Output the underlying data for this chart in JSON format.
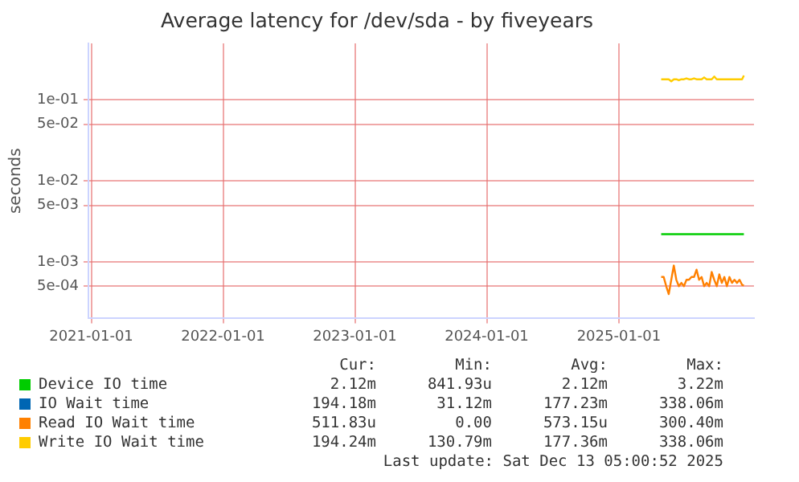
{
  "chart_data": {
    "type": "line",
    "title": "Average latency for /dev/sda - by fiveyears",
    "ylabel": "seconds",
    "x": [
      "2025-04-28",
      "2025-05-05",
      "2025-05-12",
      "2025-05-19",
      "2025-05-26",
      "2025-06-02",
      "2025-06-09",
      "2025-06-16",
      "2025-06-23",
      "2025-06-30",
      "2025-07-07",
      "2025-07-14",
      "2025-07-21",
      "2025-07-28",
      "2025-08-04",
      "2025-08-11",
      "2025-08-18",
      "2025-08-25",
      "2025-09-01",
      "2025-09-08",
      "2025-09-15",
      "2025-09-22",
      "2025-09-29",
      "2025-10-06",
      "2025-10-13",
      "2025-10-20",
      "2025-10-27",
      "2025-11-03",
      "2025-11-10",
      "2025-11-17",
      "2025-11-24",
      "2025-12-01",
      "2025-12-08",
      "2025-12-13"
    ],
    "series": [
      {
        "name": "Device IO time",
        "color": "#00cc00",
        "values": [
          0.0022,
          0.0022,
          0.0022,
          0.0022,
          0.0022,
          0.0022,
          0.0022,
          0.0022,
          0.0022,
          0.0022,
          0.0022,
          0.0022,
          0.0022,
          0.0022,
          0.0022,
          0.0022,
          0.0022,
          0.0022,
          0.0022,
          0.0022,
          0.0022,
          0.0022,
          0.0022,
          0.0022,
          0.0022,
          0.0022,
          0.0022,
          0.0022,
          0.0022,
          0.0022,
          0.0022,
          0.0022,
          0.0022,
          0.0022
        ]
      },
      {
        "name": "IO Wait time",
        "color": "#0066b3",
        "values": [
          null,
          null,
          null,
          null,
          null,
          null,
          null,
          null,
          null,
          null,
          null,
          null,
          null,
          null,
          null,
          null,
          null,
          null,
          null,
          null,
          null,
          null,
          null,
          null,
          null,
          null,
          null,
          null,
          null,
          null,
          null,
          null,
          null,
          null
        ]
      },
      {
        "name": "Read IO Wait time",
        "color": "#ff8000",
        "values": [
          0.00065,
          0.00065,
          0.0005,
          0.0004,
          0.0006,
          0.0009,
          0.0006,
          0.0005,
          0.00055,
          0.0005,
          0.0006,
          0.0006,
          0.00065,
          0.00065,
          0.0008,
          0.0006,
          0.00065,
          0.0005,
          0.00055,
          0.0005,
          0.00075,
          0.0006,
          0.0005,
          0.0007,
          0.00055,
          0.00065,
          0.0005,
          0.00065,
          0.00055,
          0.0006,
          0.00055,
          0.0006,
          0.00052,
          0.00051
        ]
      },
      {
        "name": "Write IO Wait time",
        "color": "#ffcc00",
        "values": [
          0.18,
          0.18,
          0.18,
          0.18,
          0.17,
          0.18,
          0.18,
          0.175,
          0.18,
          0.18,
          0.185,
          0.18,
          0.18,
          0.185,
          0.18,
          0.18,
          0.18,
          0.19,
          0.18,
          0.18,
          0.18,
          0.195,
          0.18,
          0.18,
          0.18,
          0.18,
          0.18,
          0.18,
          0.18,
          0.18,
          0.18,
          0.18,
          0.18,
          0.2
        ]
      }
    ],
    "log": "y",
    "ylim": [
      0.0002,
      0.5
    ],
    "yticks": [
      {
        "value": 0.0005,
        "label": "5e-04"
      },
      {
        "value": 0.001,
        "label": "1e-03"
      },
      {
        "value": 0.005,
        "label": "5e-03"
      },
      {
        "value": 0.01,
        "label": "1e-02"
      },
      {
        "value": 0.05,
        "label": "5e-02"
      },
      {
        "value": 0.1,
        "label": "1e-01"
      }
    ],
    "xlim": [
      "2020-12-24",
      "2026-01-10"
    ],
    "xticks": [
      "2021-01-01",
      "2022-01-01",
      "2023-01-01",
      "2024-01-01",
      "2025-01-01"
    ],
    "grid": true,
    "legend": "bottom",
    "marker": "none",
    "line_style": "solid",
    "annotations": [
      "Cur:",
      "Min:",
      "Avg:",
      "Max:",
      "2.12m",
      "841.93u",
      "2.12m",
      "3.22m",
      "194.18m",
      "31.12m",
      "177.23m",
      "338.06m",
      "511.83u",
      "0.00",
      "573.15u",
      "300.40m",
      "194.24m",
      "130.79m",
      "177.36m",
      "338.06m",
      "Last update: Sat Dec 13 05:00:52 2025"
    ]
  }
}
